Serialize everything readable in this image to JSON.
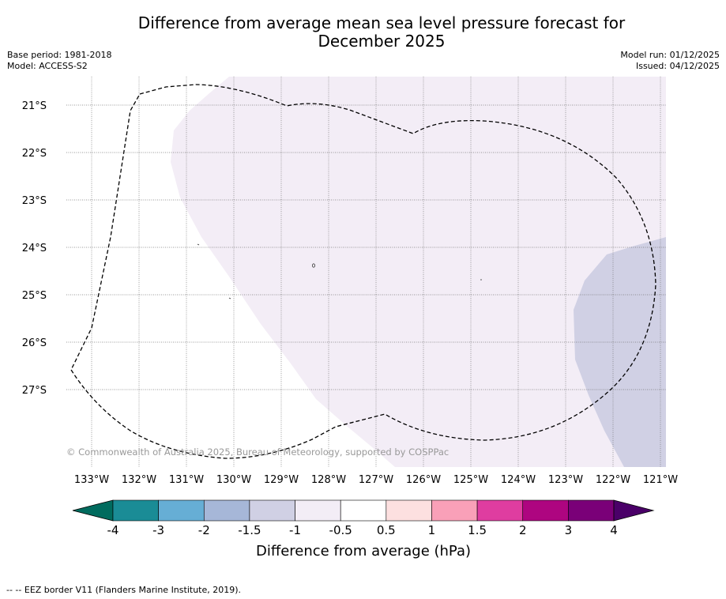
{
  "title_line1": "Difference from average mean sea level pressure forecast for",
  "title_line2": "December 2025",
  "base_period": "Base period: 1981-2018",
  "model": "Model: ACCESS-S2",
  "model_run": "Model run: 01/12/2025",
  "issued": "Issued: 04/12/2025",
  "copyright": "© Commonwealth of Australia 2025, Bureau of Meteorology, supported by COSPPac",
  "lat_labels": [
    "21°S",
    "22°S",
    "23°S",
    "24°S",
    "25°S",
    "26°S",
    "27°S"
  ],
  "lon_labels": [
    "133°W",
    "132°W",
    "131°W",
    "130°W",
    "129°W",
    "128°W",
    "127°W",
    "126°W",
    "125°W",
    "124°W",
    "123°W",
    "122°W",
    "121°W"
  ],
  "colorbar": {
    "ticks": [
      "-4",
      "-3",
      "-2",
      "-1.5",
      "-1",
      "-0.5",
      "0.5",
      "1",
      "1.5",
      "2",
      "3",
      "4"
    ],
    "colors": [
      "#1a8c96",
      "#66aed5",
      "#a6b7d8",
      "#d0d0e4",
      "#f3edf6",
      "#ffffff",
      "#fde0e0",
      "#f9a0b8",
      "#df3da0",
      "#ae0580",
      "#7a0078"
    ],
    "under_color": "#006b5e",
    "over_color": "#4a0068",
    "label": "Difference from average (hPa)"
  },
  "legend_text": "-- -- EEZ border V11 (Flanders Marine Institute, 2019)."
}
